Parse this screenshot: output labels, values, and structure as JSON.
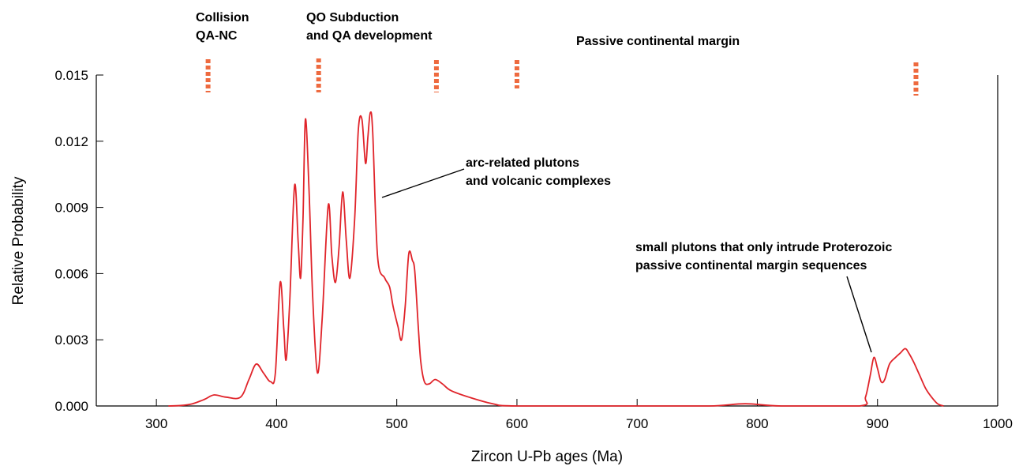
{
  "chart_data": {
    "type": "line",
    "xlabel": "Zircon U-Pb ages (Ma)",
    "ylabel": "Relative  Probability",
    "xlim": [
      250,
      1000
    ],
    "xticks": [
      300,
      400,
      500,
      600,
      700,
      800,
      900,
      1000
    ],
    "ylim": [
      0,
      0.015
    ],
    "yticks": [
      {
        "value": 0,
        "label": "0.000"
      },
      0.003,
      0.006,
      0.009,
      0.012,
      0.015
    ],
    "series": [
      {
        "color": "#e0242a",
        "x": [
          310,
          320,
          330,
          340,
          348,
          358,
          370,
          377,
          383,
          389,
          395,
          399,
          403,
          406,
          408,
          411,
          415,
          418,
          420,
          422,
          424,
          427,
          430,
          434,
          438,
          443,
          446,
          449,
          452,
          455,
          458,
          461,
          465,
          468,
          471,
          474,
          476,
          478,
          480,
          484,
          490,
          494,
          497,
          501,
          504,
          507,
          510,
          513,
          515,
          518,
          520,
          523,
          527,
          532,
          538,
          545,
          560,
          580,
          600,
          700,
          760,
          790,
          820,
          885,
          890,
          894,
          897,
          900,
          903,
          906,
          910,
          915,
          919,
          923,
          926,
          930,
          935,
          940,
          945,
          950,
          955
        ],
        "values": [
          0,
          2e-05,
          0.0001,
          0.0003,
          0.0005,
          0.0004,
          0.0004,
          0.0012,
          0.0019,
          0.0015,
          0.0011,
          0.0015,
          0.0056,
          0.0035,
          0.0021,
          0.0048,
          0.01,
          0.0074,
          0.0058,
          0.0085,
          0.013,
          0.0098,
          0.005,
          0.0015,
          0.004,
          0.0091,
          0.0068,
          0.0056,
          0.0072,
          0.0097,
          0.0075,
          0.0058,
          0.0085,
          0.0125,
          0.013,
          0.011,
          0.0122,
          0.0133,
          0.0124,
          0.0068,
          0.0058,
          0.0054,
          0.0045,
          0.0036,
          0.003,
          0.0045,
          0.0069,
          0.0066,
          0.0061,
          0.0035,
          0.002,
          0.0011,
          0.001,
          0.0012,
          0.001,
          0.0007,
          0.0004,
          0.0001,
          0,
          0,
          0,
          0.0001,
          0,
          0,
          0.0004,
          0.0014,
          0.0022,
          0.0017,
          0.0011,
          0.0012,
          0.0019,
          0.0022,
          0.0024,
          0.0026,
          0.0024,
          0.002,
          0.0014,
          0.0008,
          0.0004,
          0.0001,
          0
        ]
      }
    ],
    "event_markers": {
      "color": "#ee6a3f",
      "x": [
        343,
        435,
        533,
        600,
        932
      ]
    },
    "annotations": [
      {
        "lines": [
          "Collision",
          "QA-NC"
        ]
      },
      {
        "lines": [
          "QO Subduction",
          "and QA development"
        ]
      },
      {
        "lines": [
          "Passive continental margin"
        ]
      },
      {
        "lines": [
          "arc-related plutons",
          "and volcanic complexes"
        ]
      },
      {
        "lines": [
          "small  plutons that only intrude Proterozoic",
          "passive continental margin sequences"
        ]
      }
    ]
  }
}
